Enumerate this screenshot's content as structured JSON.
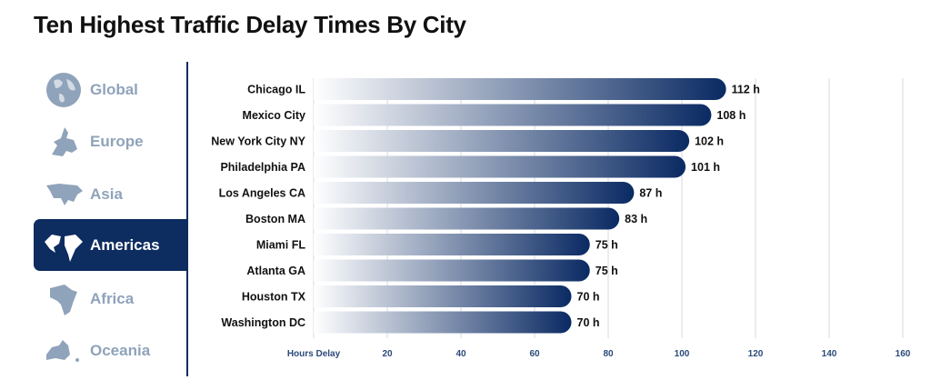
{
  "title": "Ten Highest Traffic Delay Times By City",
  "sidebar": {
    "items": [
      {
        "label": "Global",
        "icon": "globe-icon",
        "active": false
      },
      {
        "label": "Europe",
        "icon": "europe-map-icon",
        "active": false
      },
      {
        "label": "Asia",
        "icon": "asia-map-icon",
        "active": false
      },
      {
        "label": "Americas",
        "icon": "americas-map-icon",
        "active": true
      },
      {
        "label": "Africa",
        "icon": "africa-map-icon",
        "active": false
      },
      {
        "label": "Oceania",
        "icon": "oceania-map-icon",
        "active": false
      }
    ]
  },
  "colors": {
    "accent": "#0d2c60",
    "inactive": "#8fa3ba",
    "bar_end": "#0a2a63",
    "bar_start": "#ffffff"
  },
  "chart_data": {
    "type": "bar",
    "orientation": "horizontal",
    "categories": [
      "Chicago IL",
      "Mexico City",
      "New York City NY",
      "Philadelphia PA",
      "Los Angeles CA",
      "Boston MA",
      "Miami FL",
      "Atlanta GA",
      "Houston TX",
      "Washington DC"
    ],
    "values": [
      112,
      108,
      102,
      101,
      87,
      83,
      75,
      75,
      70,
      70
    ],
    "value_suffix": " h",
    "xlabel": "Hours Delay",
    "xlim": [
      0,
      160
    ],
    "xticks": [
      20,
      40,
      60,
      80,
      100,
      120,
      140,
      160
    ],
    "grid": true
  }
}
